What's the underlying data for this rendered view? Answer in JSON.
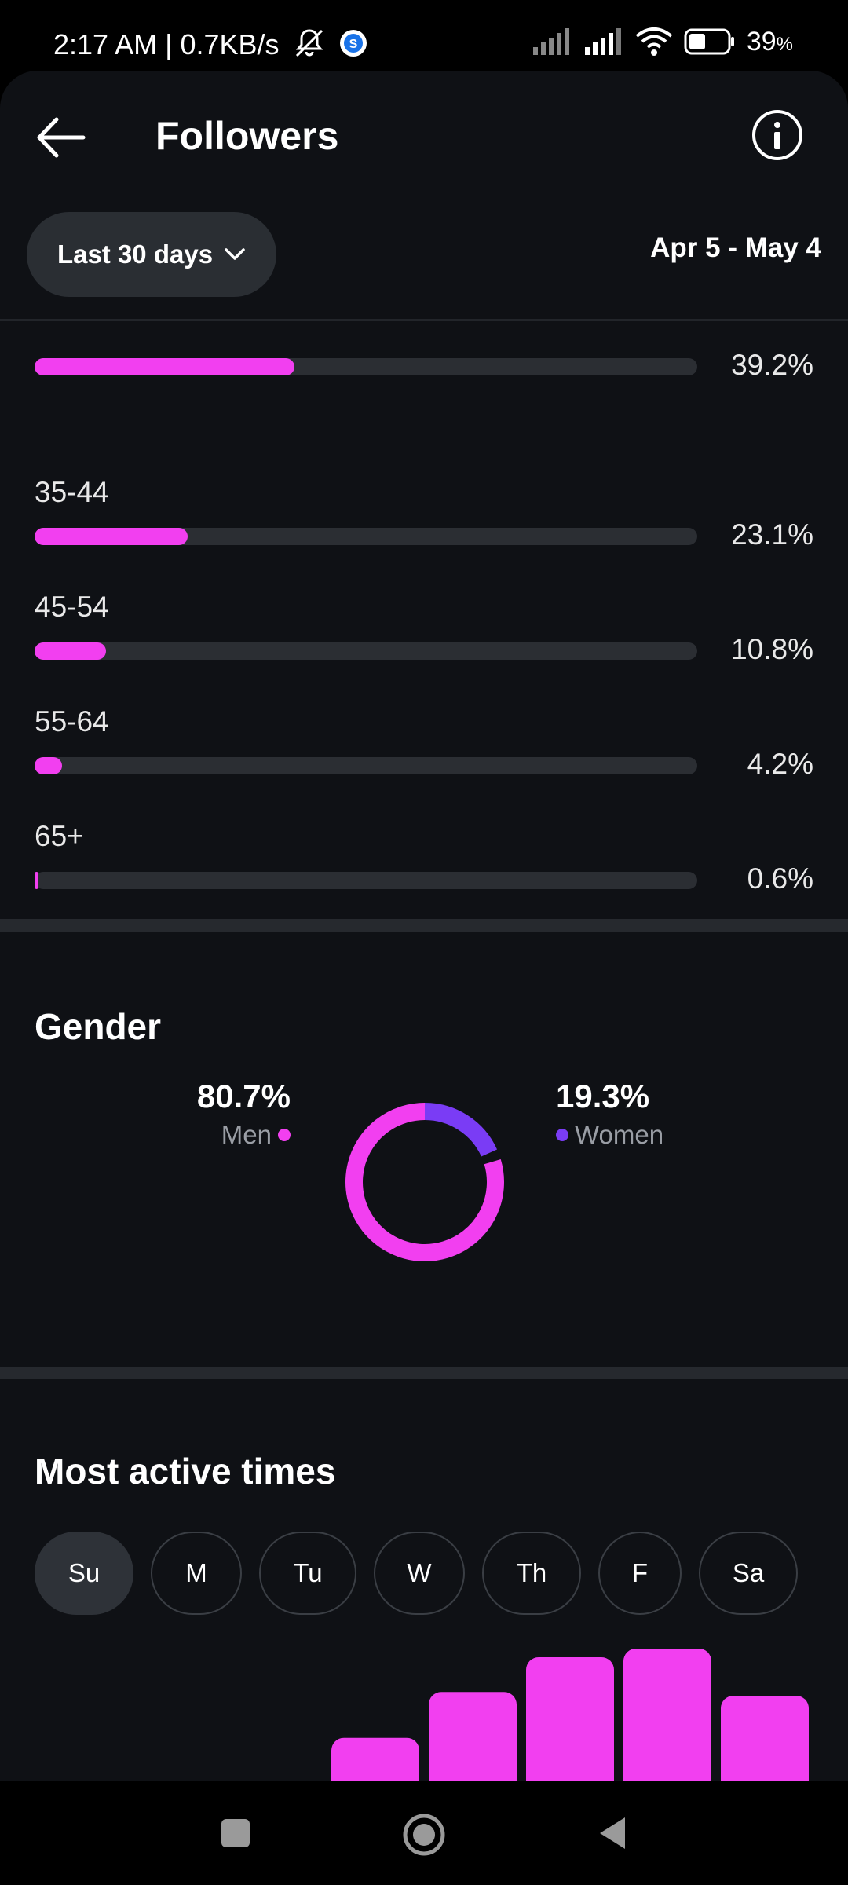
{
  "status_bar": {
    "time_speed": "2:17 AM | 0.7KB/s",
    "battery": "39",
    "battery_unit": "%"
  },
  "header": {
    "title": "Followers"
  },
  "filter": {
    "range_label": "Last 30 days",
    "date_range": "Apr 5 - May 4"
  },
  "age_groups": [
    {
      "label": "",
      "percent_text": "39.2%",
      "value": 39.2
    },
    {
      "label": "35-44",
      "percent_text": "23.1%",
      "value": 23.1
    },
    {
      "label": "45-54",
      "percent_text": "10.8%",
      "value": 10.8
    },
    {
      "label": "55-64",
      "percent_text": "4.2%",
      "value": 4.2
    },
    {
      "label": "65+",
      "percent_text": "0.6%",
      "value": 0.6
    }
  ],
  "gender": {
    "title": "Gender",
    "men": {
      "percent_text": "80.7%",
      "label": "Men",
      "value": 80.7,
      "color": "#f23ff0"
    },
    "women": {
      "percent_text": "19.3%",
      "label": "Women",
      "value": 19.3,
      "color": "#7a3cf5"
    }
  },
  "active_times": {
    "title": "Most active times",
    "days": [
      "Su",
      "M",
      "Tu",
      "W",
      "Th",
      "F",
      "Sa"
    ],
    "selected_day": "Su",
    "bar_color": "#f23ff0",
    "bars": [
      0,
      0,
      0,
      0.35,
      0.72,
      1.0,
      1.07,
      0.69
    ]
  },
  "colors": {
    "accent": "#f23ff0",
    "secondary": "#7a3cf5",
    "background": "#0f1115"
  }
}
